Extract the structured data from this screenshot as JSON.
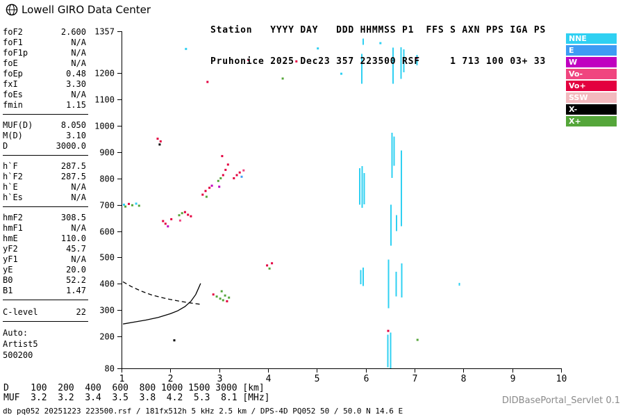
{
  "logo": {
    "title": "Lowell GIRO Data Center"
  },
  "header": {
    "line1": "Station   YYYY DAY   DDD HHMMSS P1  FFS S AXN PPS IGA PS",
    "line2": "Pruhonice 2025 Dec23 357 223500 RSF     1 713 100 03+ 33"
  },
  "params": {
    "groups": [
      {
        "rows": [
          {
            "label": "foF2",
            "value": "2.600"
          },
          {
            "label": "foF1",
            "value": "N/A"
          },
          {
            "label": "foF1p",
            "value": "N/A"
          },
          {
            "label": "foE",
            "value": "N/A"
          },
          {
            "label": "foEp",
            "value": "0.48"
          },
          {
            "label": "fxI",
            "value": "3.30"
          },
          {
            "label": "foEs",
            "value": "N/A"
          },
          {
            "label": "fmin",
            "value": "1.15"
          }
        ]
      },
      {
        "rows": [
          {
            "label": "MUF(D)",
            "value": "8.050"
          },
          {
            "label": "M(D)",
            "value": "3.10"
          },
          {
            "label": "D",
            "value": "3000.0"
          }
        ]
      },
      {
        "rows": [
          {
            "label": "h`F",
            "value": "287.5"
          },
          {
            "label": "h`F2",
            "value": "287.5"
          },
          {
            "label": "h`E",
            "value": "N/A"
          },
          {
            "label": "h`Es",
            "value": "N/A"
          }
        ]
      },
      {
        "rows": [
          {
            "label": "hmF2",
            "value": "308.5"
          },
          {
            "label": "hmF1",
            "value": "N/A"
          },
          {
            "label": "hmE",
            "value": "110.0"
          },
          {
            "label": "yF2",
            "value": "45.7"
          },
          {
            "label": "yF1",
            "value": "N/A"
          },
          {
            "label": "yE",
            "value": "20.0"
          },
          {
            "label": "B0",
            "value": "52.2"
          },
          {
            "label": "B1",
            "value": "1.47"
          }
        ]
      },
      {
        "rows": [
          {
            "label": "C-level",
            "value": "22"
          }
        ]
      }
    ],
    "auto": {
      "lines": [
        "Auto:",
        "Artist5",
        "500200"
      ]
    }
  },
  "legend": {
    "items": [
      {
        "label": "NNE",
        "key": "nne"
      },
      {
        "label": "E",
        "key": "e"
      },
      {
        "label": "W",
        "key": "w"
      },
      {
        "label": "Vo-",
        "key": "vo-"
      },
      {
        "label": "Vo+",
        "key": "vo+"
      },
      {
        "label": "SSW",
        "key": "ssw"
      },
      {
        "label": "X-",
        "key": "x-"
      },
      {
        "label": "X+",
        "key": "x+"
      }
    ]
  },
  "footer": {
    "d_line": "D    100  200  400  600  800 1000 1500 3000 [km]",
    "muf_line": "MUF  3.2  3.2  3.4  3.5  3.8  4.2  5.3  8.1 [MHz]",
    "file_info": "db pq052 20251223 223500.rsf / 181fx512h 5 kHz 2.5 km / DPS-4D PQ052 50 / 50.0 N 14.6 E",
    "servlet": "DIDBasePortal_Servlet 0.1"
  },
  "chart_data": {
    "type": "scatter",
    "title": "Pruhonice ionogram 2025 Dec23 357 223500",
    "x_unit": "MHz",
    "y_unit": "km",
    "x_range": [
      1,
      10
    ],
    "y_range": [
      80,
      1357
    ],
    "x_ticks": [
      1,
      2,
      3,
      4,
      5,
      6,
      7,
      8,
      9,
      10
    ],
    "y_ticks": [
      1357,
      1200,
      1100,
      1000,
      900,
      800,
      700,
      600,
      500,
      400,
      300,
      200,
      80
    ],
    "grid": false,
    "legend_position": "right",
    "colors": {
      "nne": "#2FD0F2",
      "e": "#3E9BF4",
      "w": "#C000C0",
      "vo-": "#F0457F",
      "vo+": "#E3003F",
      "ssw": "#F3B9BE",
      "x-": "#000000",
      "x+": "#55A63A"
    },
    "points": [
      [
        1.05,
        700,
        "nne"
      ],
      [
        1.08,
        693,
        "x+"
      ],
      [
        1.15,
        703,
        "vo+"
      ],
      [
        1.22,
        698,
        "x+"
      ],
      [
        1.3,
        704,
        "nne"
      ],
      [
        1.36,
        696,
        "x+"
      ],
      [
        1.74,
        950,
        "vo+"
      ],
      [
        1.8,
        940,
        "vo+"
      ],
      [
        1.78,
        928,
        "x-"
      ],
      [
        1.85,
        638,
        "vo+"
      ],
      [
        1.9,
        628,
        "vo+"
      ],
      [
        1.95,
        618,
        "w"
      ],
      [
        2.02,
        645,
        "vo+"
      ],
      [
        2.18,
        660,
        "x+"
      ],
      [
        2.24,
        668,
        "x+"
      ],
      [
        2.3,
        672,
        "vo+"
      ],
      [
        2.36,
        662,
        "vo+"
      ],
      [
        2.42,
        656,
        "vo+"
      ],
      [
        2.2,
        640,
        "vo-"
      ],
      [
        2.66,
        738,
        "vo+"
      ],
      [
        2.72,
        752,
        "vo+"
      ],
      [
        2.74,
        730,
        "x+"
      ],
      [
        2.8,
        764,
        "vo+"
      ],
      [
        2.85,
        772,
        "w"
      ],
      [
        2.98,
        790,
        "x+"
      ],
      [
        3.03,
        800,
        "x+"
      ],
      [
        3.08,
        812,
        "vo+"
      ],
      [
        3.13,
        832,
        "vo+"
      ],
      [
        3.18,
        852,
        "vo+"
      ],
      [
        3.06,
        884,
        "vo+"
      ],
      [
        3.0,
        768,
        "w"
      ],
      [
        3.3,
        800,
        "vo+"
      ],
      [
        3.36,
        812,
        "vo+"
      ],
      [
        3.42,
        822,
        "vo+"
      ],
      [
        3.46,
        806,
        "e"
      ],
      [
        3.5,
        830,
        "vo-"
      ],
      [
        2.88,
        360,
        "vo+"
      ],
      [
        2.95,
        352,
        "x+"
      ],
      [
        3.02,
        344,
        "x+"
      ],
      [
        3.08,
        338,
        "x+"
      ],
      [
        3.12,
        356,
        "x+"
      ],
      [
        3.2,
        348,
        "x+"
      ],
      [
        3.16,
        334,
        "vo+"
      ],
      [
        3.05,
        372,
        "x+"
      ],
      [
        3.98,
        470,
        "vo+"
      ],
      [
        4.03,
        458,
        "x+"
      ],
      [
        4.08,
        478,
        "vo+"
      ],
      [
        2.08,
        186,
        "x-"
      ],
      [
        2.76,
        1165,
        "vo+"
      ],
      [
        4.3,
        1178,
        "x+"
      ],
      [
        4.58,
        1243,
        "vo+"
      ],
      [
        5.02,
        1292,
        "nne"
      ],
      [
        7.04,
        1256,
        "vo+"
      ],
      [
        7.06,
        188,
        "x+"
      ],
      [
        3.6,
        1248,
        "vo+"
      ],
      [
        5.5,
        1196,
        "nne"
      ],
      [
        6.3,
        1312,
        "nne"
      ],
      [
        2.32,
        1290,
        "nne"
      ],
      [
        6.46,
        222,
        "vo+"
      ]
    ],
    "segments_color": "nne",
    "segments": [
      [
        5.88,
        700,
        838
      ],
      [
        5.93,
        688,
        846
      ],
      [
        5.97,
        702,
        820
      ],
      [
        5.9,
        398,
        452
      ],
      [
        5.95,
        392,
        462
      ],
      [
        5.92,
        1158,
        1272
      ],
      [
        6.45,
        84,
        208
      ],
      [
        6.51,
        80,
        216
      ],
      [
        6.47,
        308,
        492
      ],
      [
        6.52,
        545,
        700
      ],
      [
        6.54,
        802,
        972
      ],
      [
        6.58,
        848,
        958
      ],
      [
        6.56,
        1158,
        1295
      ],
      [
        6.62,
        352,
        446
      ],
      [
        6.63,
        600,
        660
      ],
      [
        6.72,
        1176,
        1296
      ],
      [
        6.78,
        1202,
        1288
      ],
      [
        6.73,
        618,
        905
      ],
      [
        6.74,
        348,
        478
      ],
      [
        7.05,
        1228,
        1268
      ],
      [
        5.95,
        1306,
        1330
      ],
      [
        7.92,
        393,
        404
      ]
    ],
    "curves": [
      {
        "name": "autoscaled-trace",
        "style": "solid",
        "pts": [
          [
            1.03,
            248
          ],
          [
            1.25,
            255
          ],
          [
            1.5,
            263
          ],
          [
            1.75,
            273
          ],
          [
            2.0,
            287
          ],
          [
            2.15,
            298
          ],
          [
            2.3,
            314
          ],
          [
            2.42,
            334
          ],
          [
            2.52,
            360
          ],
          [
            2.58,
            385
          ],
          [
            2.62,
            402
          ]
        ]
      },
      {
        "name": "muf-transmission-curve",
        "style": "dashed",
        "pts": [
          [
            1.03,
            408
          ],
          [
            1.2,
            390
          ],
          [
            1.4,
            373
          ],
          [
            1.6,
            359
          ],
          [
            1.8,
            349
          ],
          [
            2.0,
            341
          ],
          [
            2.2,
            334
          ],
          [
            2.4,
            328
          ],
          [
            2.6,
            323
          ]
        ]
      }
    ]
  }
}
